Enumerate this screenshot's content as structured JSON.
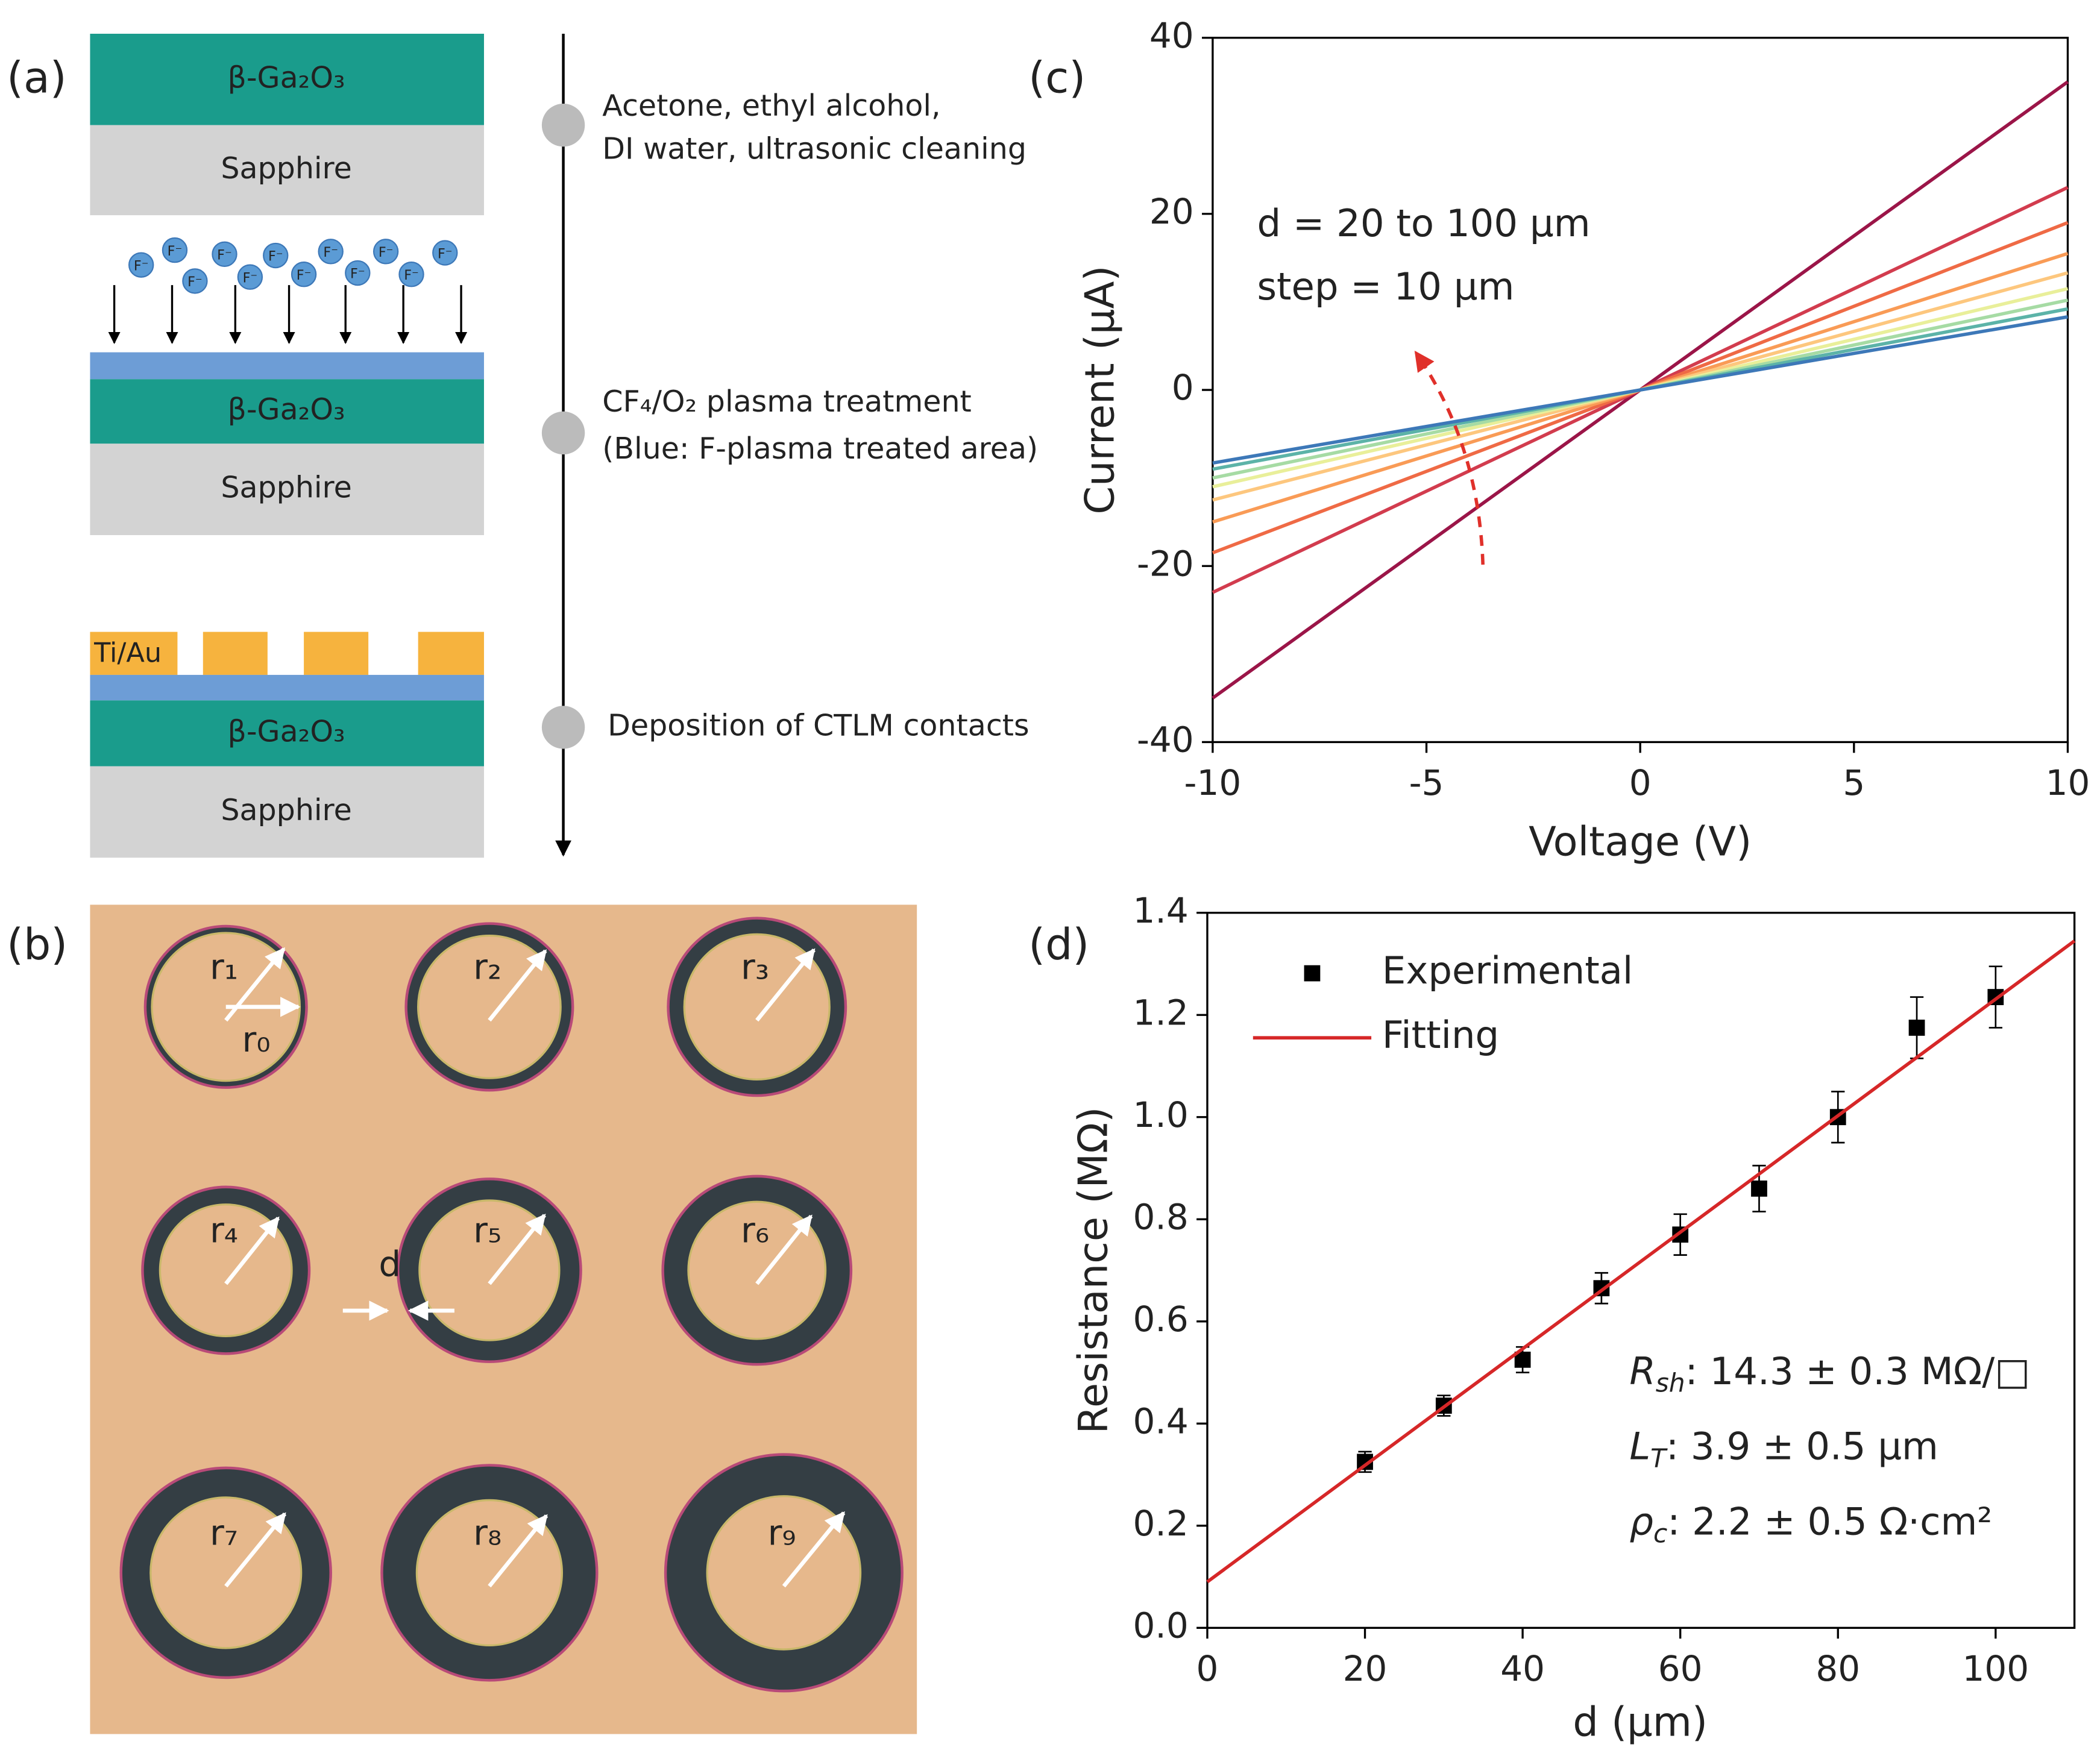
{
  "panel_a": {
    "label": "(a)",
    "film": "β-Ga₂O₃",
    "substrate": "Sapphire",
    "ion": "F⁻",
    "metal": "Ti/Au",
    "steps": [
      [
        "Acetone, ethyl alcohol,",
        "DI water, ultrasonic cleaning"
      ],
      [
        "CF₄/O₂ plasma treatment",
        "(Blue: F-plasma treated area)"
      ],
      [
        "Deposition of CTLM contacts"
      ]
    ]
  },
  "panel_b": {
    "label": "(b)",
    "radii": [
      "r₁",
      "r₂",
      "r₃",
      "r₄",
      "r₅",
      "r₆",
      "r₇",
      "r₈",
      "r₉"
    ],
    "r0": "r₀",
    "gap": "d"
  },
  "chart_data": [
    {
      "type": "line",
      "label": "(c)",
      "xlabel": "Voltage (V)",
      "ylabel": "Current (μA)",
      "annotations": [
        "d = 20 to 100 μm",
        "step = 10 μm"
      ],
      "x": [
        -10,
        0,
        10
      ],
      "series": [
        {
          "color": "#9b1548",
          "values": [
            -35,
            0,
            35
          ]
        },
        {
          "color": "#d23c4e",
          "values": [
            -23,
            0,
            23
          ]
        },
        {
          "color": "#ef6a45",
          "values": [
            -18.5,
            0,
            19
          ]
        },
        {
          "color": "#f99b56",
          "values": [
            -15,
            0,
            15.5
          ]
        },
        {
          "color": "#fdc77e",
          "values": [
            -12.5,
            0,
            13.3
          ]
        },
        {
          "color": "#e9ef9a",
          "values": [
            -11,
            0,
            11.5
          ]
        },
        {
          "color": "#a6dba4",
          "values": [
            -10,
            0,
            10.2
          ]
        },
        {
          "color": "#5cb3a8",
          "values": [
            -9,
            0,
            9.2
          ]
        },
        {
          "color": "#3d78b8",
          "values": [
            -8.3,
            0,
            8.3
          ]
        }
      ],
      "xlim": [
        -10,
        10
      ],
      "ylim": [
        -40,
        40
      ],
      "xticks": [
        -10,
        -5,
        0,
        5,
        10
      ],
      "yticks": [
        -40,
        -20,
        0,
        20,
        40
      ]
    },
    {
      "type": "scatter",
      "label": "(d)",
      "xlabel": "d (μm)",
      "ylabel": "Resistance (MΩ)",
      "x": [
        20,
        30,
        40,
        50,
        60,
        70,
        80,
        90,
        100
      ],
      "series": [
        {
          "name": "Experimental",
          "color": "#000000",
          "values": [
            0.325,
            0.435,
            0.525,
            0.665,
            0.77,
            0.86,
            1.0,
            1.175,
            1.235
          ],
          "errors": [
            0.02,
            0.02,
            0.025,
            0.03,
            0.04,
            0.045,
            0.05,
            0.06,
            0.06
          ]
        },
        {
          "name": "Fitting",
          "type": "line",
          "color": "#d62728",
          "x": [
            0,
            110
          ],
          "values": [
            0.09,
            1.345
          ]
        }
      ],
      "legend": "upper left",
      "annotations": [
        {
          "symbol": "R",
          "subscript": "sh",
          "text": ": 14.3 ± 0.3 MΩ/□"
        },
        {
          "symbol": "L",
          "subscript": "T",
          "text": ": 3.9 ± 0.5  μm"
        },
        {
          "symbol": "ρ",
          "subscript": "c",
          "text": ": 2.2 ± 0.5 Ω·cm²"
        }
      ],
      "xlim": [
        0,
        110
      ],
      "ylim": [
        0,
        1.4
      ],
      "xticks": [
        0,
        20,
        40,
        60,
        80,
        100
      ],
      "yticks": [
        {
          "value": 0,
          "label": "0.0"
        },
        0.2,
        0.4,
        0.6,
        0.8,
        {
          "value": 1,
          "label": "1.0"
        },
        1.2,
        1.4
      ]
    }
  ]
}
